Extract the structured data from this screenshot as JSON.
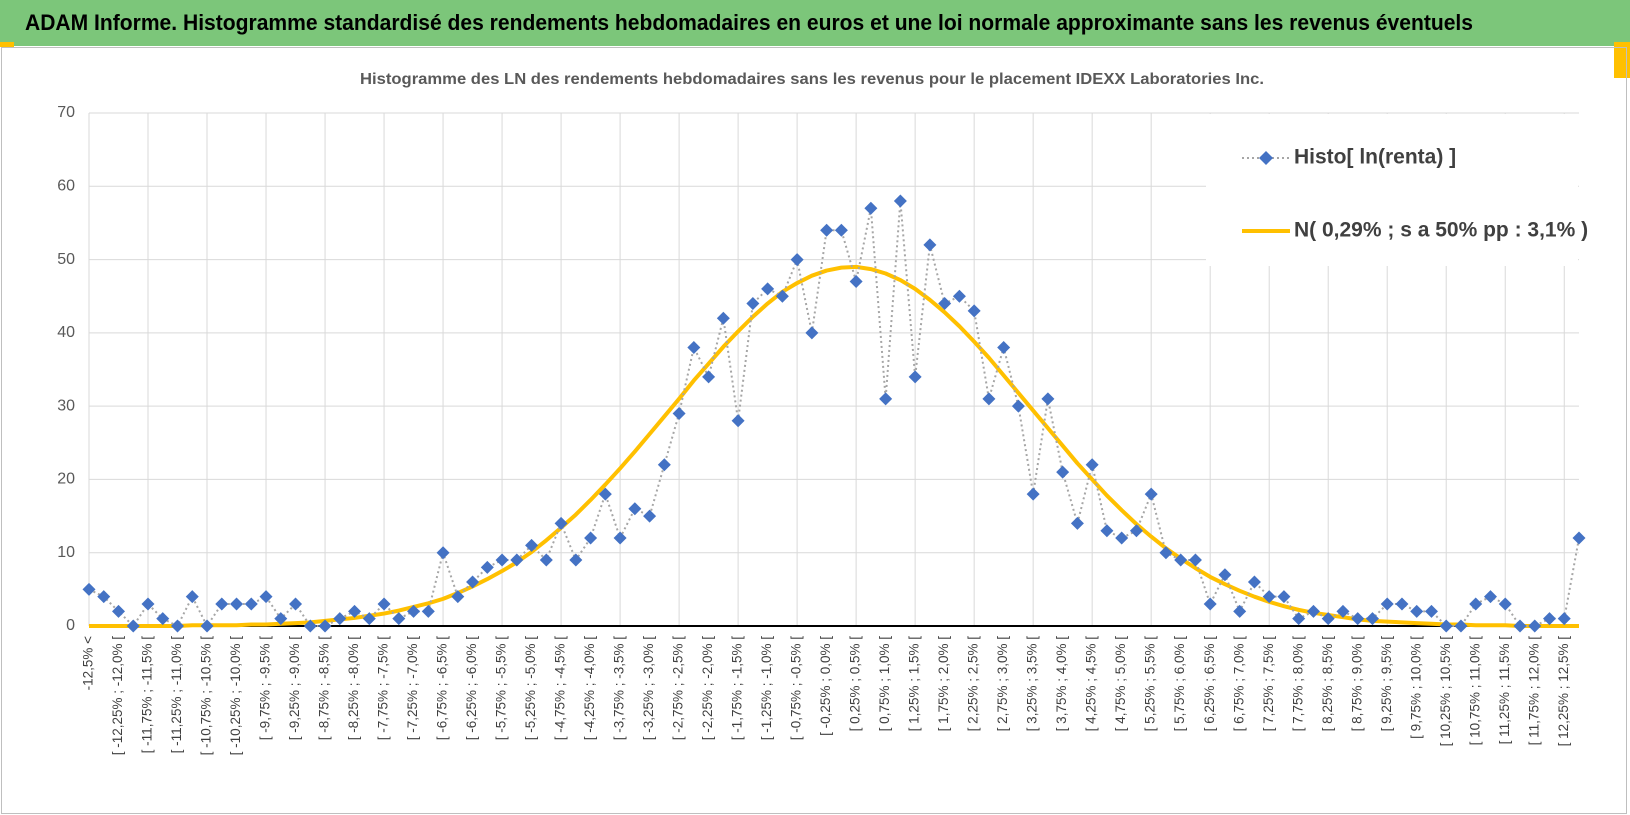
{
  "header": {
    "title": "ADAM Informe. Histogramme standardisé des rendements hebdomadaires en euros et une loi normale approximante sans les revenus éventuels"
  },
  "chart_data": {
    "type": "line",
    "title": "Histogramme des LN des rendements hebdomadaires sans les revenus pour le placement IDEXX Laboratories Inc.",
    "categories": [
      "-12,5% <",
      null,
      "[ -12,25% ; -12,0% [",
      null,
      "[ -11,75% ; -11,5% [",
      null,
      "[ -11,25% ; -11,0% [",
      null,
      "[ -10,75% ; -10,5% [",
      null,
      "[ -10,25% ; -10,0% [",
      null,
      "[ -9,75% ; -9,5% [",
      null,
      "[ -9,25% ; -9,0% [",
      null,
      "[ -8,75% ; -8,5% [",
      null,
      "[ -8,25% ; -8,0% [",
      null,
      "[ -7,75% ; -7,5% [",
      null,
      "[ -7,25% ; -7,0% [",
      null,
      "[ -6,75% ; -6,5% [",
      null,
      "[ -6,25% ; -6,0% [",
      null,
      "[ -5,75% ; -5,5% [",
      null,
      "[ -5,25% ; -5,0% [",
      null,
      "[ -4,75% ; -4,5% [",
      null,
      "[ -4,25% ; -4,0% [",
      null,
      "[ -3,75% ; -3,5% [",
      null,
      "[ -3,25% ; -3,0% [",
      null,
      "[ -2,75% ; -2,5% [",
      null,
      "[ -2,25% ; -2,0% [",
      null,
      "[ -1,75% ; -1,5% [",
      null,
      "[ -1,25% ; -1,0% [",
      null,
      "[ -0,75% ; -0,5% [",
      null,
      "[ -0,25% ; 0,0% [",
      null,
      "[ 0,25% ; 0,5% [",
      null,
      "[ 0,75% ; 1,0% [",
      null,
      "[ 1,25% ; 1,5% [",
      null,
      "[ 1,75% ; 2,0% [",
      null,
      "[ 2,25% ; 2,5% [",
      null,
      "[ 2,75% ; 3,0% [",
      null,
      "[ 3,25% ; 3,5% [",
      null,
      "[ 3,75% ; 4,0% [",
      null,
      "[ 4,25% ; 4,5% [",
      null,
      "[ 4,75% ; 5,0% [",
      null,
      "[ 5,25% ; 5,5% [",
      null,
      "[ 5,75% ; 6,0% [",
      null,
      "[ 6,25% ; 6,5% [",
      null,
      "[ 6,75% ; 7,0% [",
      null,
      "[ 7,25% ; 7,5% [",
      null,
      "[ 7,75% ; 8,0% [",
      null,
      "[ 8,25% ; 8,5% [",
      null,
      "[ 8,75% ; 9,0% [",
      null,
      "[ 9,25% ; 9,5% [",
      null,
      "[ 9,75% ; 10,0% [",
      null,
      "[ 10,25% ; 10,5% [",
      null,
      "[ 10,75% ; 11,0% [",
      null,
      "[ 11,25% ; 11,5% [",
      null,
      "[ 11,75% ; 12,0% [",
      null,
      "[ 12,25% ; 12,5% [",
      null
    ],
    "series": [
      {
        "name": "Histo[ ln(renta) ]",
        "color": "#4472c4",
        "line_color": "#a6a6a6",
        "line_style": "dotted",
        "marker": "diamond",
        "values": [
          5,
          4,
          2,
          0,
          3,
          1,
          0,
          4,
          0,
          3,
          3,
          3,
          4,
          1,
          3,
          0,
          0,
          1,
          2,
          1,
          3,
          1,
          2,
          2,
          10,
          4,
          6,
          8,
          9,
          9,
          11,
          9,
          14,
          9,
          12,
          18,
          12,
          16,
          15,
          22,
          29,
          38,
          34,
          42,
          28,
          44,
          46,
          45,
          50,
          40,
          54,
          54,
          47,
          57,
          31,
          58,
          34,
          52,
          44,
          45,
          43,
          31,
          38,
          30,
          18,
          31,
          21,
          14,
          22,
          13,
          12,
          13,
          18,
          10,
          9,
          9,
          3,
          7,
          2,
          6,
          4,
          4,
          1,
          2,
          1,
          2,
          1,
          1,
          3,
          3,
          2,
          2,
          0,
          0,
          3,
          4,
          3,
          0,
          0,
          1,
          1,
          12
        ]
      },
      {
        "name": "N( 0,29% ; s a 50% pp : 3,1% )",
        "color": "#ffc000",
        "line_color": "#ffc000",
        "line_style": "solid",
        "marker": "none",
        "values": [
          0,
          0,
          0,
          0,
          0,
          0,
          0,
          0.1,
          0.1,
          0.1,
          0.1,
          0.2,
          0.2,
          0.3,
          0.4,
          0.5,
          0.7,
          0.9,
          1.1,
          1.4,
          1.7,
          2.1,
          2.6,
          3.1,
          3.7,
          4.5,
          5.4,
          6.4,
          7.5,
          8.7,
          10.1,
          11.7,
          13.4,
          15.2,
          17.2,
          19.3,
          21.5,
          23.8,
          26.2,
          28.6,
          31.0,
          33.5,
          35.8,
          38.1,
          40.2,
          42.2,
          44.0,
          45.6,
          46.8,
          47.8,
          48.5,
          48.9,
          49.0,
          48.7,
          48.1,
          47.2,
          46.0,
          44.5,
          42.8,
          40.9,
          38.8,
          36.6,
          34.2,
          31.8,
          29.4,
          27.0,
          24.6,
          22.2,
          20.0,
          17.8,
          15.8,
          13.9,
          12.2,
          10.6,
          9.2,
          7.9,
          6.7,
          5.7,
          4.8,
          4.0,
          3.3,
          2.7,
          2.2,
          1.8,
          1.5,
          1.2,
          0.9,
          0.7,
          0.6,
          0.5,
          0.4,
          0.3,
          0.2,
          0.2,
          0.1,
          0.1,
          0.1,
          0,
          0,
          0,
          0,
          0
        ]
      }
    ],
    "ylim": [
      0,
      70
    ],
    "yticks": [
      0,
      10,
      20,
      30,
      40,
      50,
      60,
      70
    ],
    "grid": true,
    "legend": "upper right"
  }
}
